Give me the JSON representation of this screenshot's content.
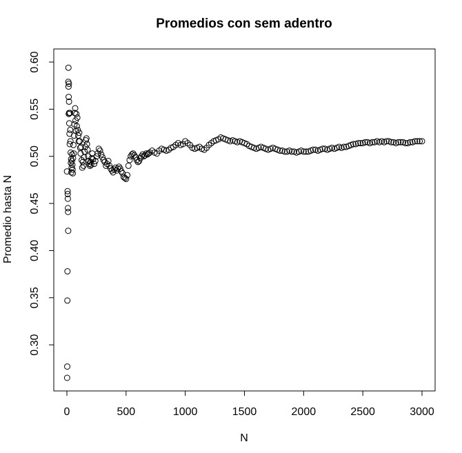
{
  "chart_data": {
    "type": "scatter",
    "title": "Promedios con sem adentro",
    "xlabel": "N",
    "ylabel": "Promedio hasta N",
    "xlim": [
      0,
      3000
    ],
    "ylim": [
      0.265,
      0.6
    ],
    "xticks": [
      "0",
      "500",
      "1000",
      "1500",
      "2000",
      "2500",
      "3000"
    ],
    "yticks": [
      "0.30",
      "0.35",
      "0.40",
      "0.45",
      "0.50",
      "0.55",
      "0.60"
    ],
    "grid": false,
    "legend": "none",
    "marker": "open-circle",
    "color": "#000000",
    "series": [
      {
        "x": [
          1,
          2,
          3,
          4,
          5,
          6,
          7,
          8,
          9,
          10,
          11,
          12,
          13,
          14,
          15,
          16,
          17,
          18,
          19,
          20,
          22,
          24,
          26,
          28,
          30,
          32,
          34,
          36,
          38,
          40,
          42,
          44,
          46,
          48,
          50,
          52,
          55,
          58,
          61,
          64,
          67,
          70,
          73,
          76,
          80,
          84,
          88,
          92,
          96,
          100,
          104,
          108,
          112,
          116,
          120,
          125,
          130,
          135,
          140,
          145,
          150,
          155,
          160,
          165,
          170,
          175,
          180,
          185,
          190,
          195,
          200,
          205,
          210,
          215,
          220,
          230,
          240,
          250,
          260,
          270,
          280,
          290,
          300,
          310,
          320,
          330,
          340,
          350,
          360,
          370,
          380,
          390,
          400,
          410,
          420,
          430,
          440,
          450,
          460,
          470,
          480,
          490,
          500,
          510,
          520,
          530,
          540,
          550,
          560,
          570,
          580,
          590,
          600,
          610,
          620,
          630,
          640,
          650,
          660,
          670,
          680,
          690,
          700,
          720,
          740,
          760,
          780,
          800,
          820,
          840,
          860,
          880,
          900,
          920,
          940,
          960,
          980,
          1000,
          1020,
          1040,
          1060,
          1080,
          1100,
          1120,
          1140,
          1160,
          1180,
          1200,
          1220,
          1240,
          1260,
          1280,
          1300,
          1320,
          1340,
          1360,
          1380,
          1400,
          1420,
          1440,
          1460,
          1480,
          1500,
          1520,
          1540,
          1560,
          1580,
          1600,
          1620,
          1640,
          1660,
          1680,
          1700,
          1720,
          1740,
          1760,
          1780,
          1800,
          1820,
          1840,
          1860,
          1880,
          1900,
          1920,
          1940,
          1960,
          1980,
          2000,
          2020,
          2040,
          2060,
          2080,
          2100,
          2120,
          2140,
          2160,
          2180,
          2200,
          2220,
          2240,
          2260,
          2280,
          2300,
          2320,
          2340,
          2360,
          2380,
          2400,
          2420,
          2440,
          2460,
          2480,
          2500,
          2520,
          2540,
          2560,
          2580,
          2600,
          2620,
          2640,
          2660,
          2680,
          2700,
          2720,
          2740,
          2760,
          2780,
          2800,
          2820,
          2840,
          2860,
          2880,
          2900,
          2920,
          2940,
          2960,
          2980,
          3000
        ],
        "y": [
          0.484,
          0.265,
          0.277,
          0.347,
          0.378,
          0.463,
          0.46,
          0.455,
          0.445,
          0.441,
          0.421,
          0.579,
          0.594,
          0.574,
          0.563,
          0.545,
          0.577,
          0.558,
          0.546,
          0.535,
          0.524,
          0.513,
          0.546,
          0.528,
          0.516,
          0.504,
          0.493,
          0.497,
          0.483,
          0.488,
          0.495,
          0.502,
          0.491,
          0.486,
          0.482,
          0.498,
          0.512,
          0.503,
          0.522,
          0.534,
          0.546,
          0.551,
          0.538,
          0.527,
          0.545,
          0.532,
          0.541,
          0.528,
          0.522,
          0.516,
          0.525,
          0.516,
          0.509,
          0.503,
          0.51,
          0.496,
          0.488,
          0.494,
          0.49,
          0.499,
          0.505,
          0.51,
          0.517,
          0.519,
          0.513,
          0.507,
          0.5,
          0.495,
          0.492,
          0.49,
          0.494,
          0.491,
          0.498,
          0.503,
          0.497,
          0.492,
          0.495,
          0.5,
          0.503,
          0.508,
          0.506,
          0.502,
          0.499,
          0.496,
          0.494,
          0.49,
          0.492,
          0.495,
          0.49,
          0.487,
          0.485,
          0.483,
          0.486,
          0.488,
          0.485,
          0.487,
          0.489,
          0.487,
          0.484,
          0.482,
          0.478,
          0.477,
          0.476,
          0.48,
          0.49,
          0.496,
          0.5,
          0.502,
          0.503,
          0.501,
          0.499,
          0.496,
          0.494,
          0.495,
          0.498,
          0.5,
          0.502,
          0.5,
          0.501,
          0.503,
          0.502,
          0.503,
          0.504,
          0.506,
          0.504,
          0.503,
          0.506,
          0.508,
          0.507,
          0.506,
          0.507,
          0.509,
          0.51,
          0.512,
          0.514,
          0.512,
          0.513,
          0.516,
          0.514,
          0.512,
          0.509,
          0.508,
          0.509,
          0.51,
          0.508,
          0.507,
          0.509,
          0.512,
          0.514,
          0.516,
          0.517,
          0.518,
          0.52,
          0.519,
          0.518,
          0.517,
          0.516,
          0.517,
          0.516,
          0.515,
          0.516,
          0.515,
          0.514,
          0.513,
          0.511,
          0.51,
          0.509,
          0.508,
          0.509,
          0.51,
          0.509,
          0.508,
          0.507,
          0.508,
          0.509,
          0.508,
          0.507,
          0.506,
          0.506,
          0.505,
          0.505,
          0.506,
          0.505,
          0.505,
          0.504,
          0.505,
          0.506,
          0.505,
          0.505,
          0.505,
          0.506,
          0.507,
          0.507,
          0.506,
          0.507,
          0.508,
          0.508,
          0.507,
          0.508,
          0.509,
          0.508,
          0.509,
          0.51,
          0.509,
          0.51,
          0.51,
          0.511,
          0.512,
          0.513,
          0.513,
          0.514,
          0.514,
          0.514,
          0.515,
          0.515,
          0.514,
          0.515,
          0.515,
          0.516,
          0.515,
          0.516,
          0.515,
          0.516,
          0.516,
          0.515,
          0.515,
          0.514,
          0.515,
          0.515,
          0.515,
          0.514,
          0.514,
          0.515,
          0.515,
          0.516,
          0.516,
          0.516,
          0.516
        ]
      }
    ]
  }
}
